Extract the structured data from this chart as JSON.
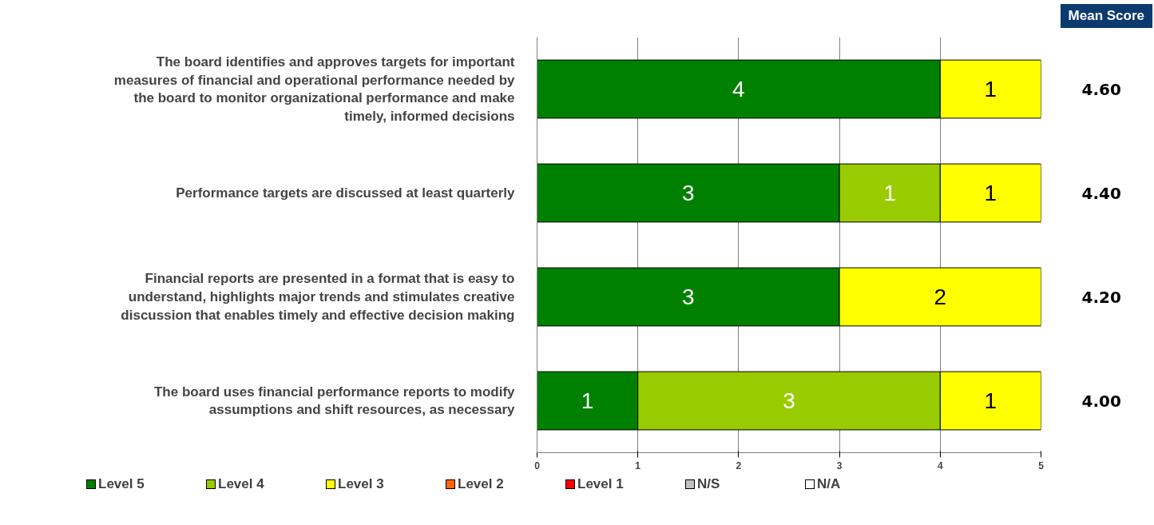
{
  "chart_data": {
    "type": "bar",
    "orientation": "horizontal",
    "stacked": true,
    "data_labels": true,
    "grid": "x",
    "legend": "bottom",
    "categories": [
      "The board identifies and approves targets for important measures of financial and operational performance needed by the board to monitor organizational performance and make timely, informed decisions",
      "Performance targets are discussed at least quarterly",
      "Financial reports are presented in a format that is easy to understand, highlights major trends and stimulates creative discussion that enables timely and effective decision making",
      "The board uses financial performance reports to modify assumptions and shift resources, as necessary"
    ],
    "series": [
      {
        "name": "Level 5",
        "color": "#008000",
        "values": [
          4,
          3,
          3,
          1
        ]
      },
      {
        "name": "Level 4",
        "color": "#99cc00",
        "values": [
          null,
          1,
          null,
          3
        ]
      },
      {
        "name": "Level 3",
        "color": "#ffff00",
        "values": [
          1,
          1,
          2,
          1
        ]
      },
      {
        "name": "Level 2",
        "color": "#ff6600",
        "values": [
          null,
          null,
          null,
          null
        ]
      },
      {
        "name": "Level 1",
        "color": "#ff0000",
        "values": [
          null,
          null,
          null,
          null
        ]
      },
      {
        "name": "N/S",
        "color": "#c0c0c0",
        "values": [
          null,
          null,
          null,
          null
        ]
      },
      {
        "name": "N/A",
        "color": "#ffffff",
        "values": [
          null,
          null,
          null,
          null
        ]
      }
    ],
    "xlim": [
      0,
      5
    ],
    "xticks": [
      0,
      1,
      2,
      3,
      4,
      5
    ],
    "annotations": [
      "Mean Score",
      "4.60",
      "4.40",
      "4.20",
      "4.00"
    ]
  }
}
